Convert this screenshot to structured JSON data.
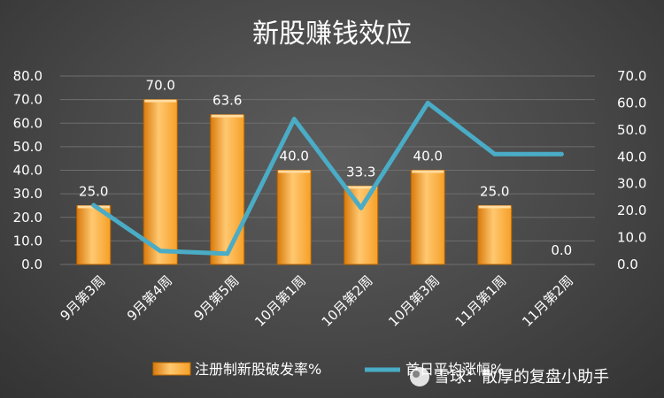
{
  "chart_data": {
    "type": "bar+line",
    "title": "新股赚钱效应",
    "categories": [
      "9月第3周",
      "9月第4周",
      "9月第5周",
      "10月第1周",
      "10月第2周",
      "10月第3周",
      "11月第1周",
      "11月第2周"
    ],
    "series": [
      {
        "name": "注册制新股破发率%",
        "type": "bar",
        "axis": "left",
        "values": [
          25.0,
          70.0,
          63.6,
          40.0,
          33.3,
          40.0,
          25.0,
          0.0
        ],
        "data_labels": [
          "25.0",
          "70.0",
          "63.6",
          "40.0",
          "33.3",
          "40.0",
          "25.0",
          "0.0"
        ]
      },
      {
        "name": "首日平均涨幅%",
        "type": "line",
        "axis": "right",
        "values": [
          22.0,
          5.0,
          4.0,
          54.0,
          21.0,
          60.0,
          41.0,
          41.0
        ]
      }
    ],
    "y_left": {
      "min": 0,
      "max": 80,
      "ticks": [
        "0.0",
        "10.0",
        "20.0",
        "30.0",
        "40.0",
        "50.0",
        "60.0",
        "70.0",
        "80.0"
      ]
    },
    "y_right": {
      "min": 0,
      "max": 70,
      "ticks": [
        "0.0",
        "10.0",
        "20.0",
        "30.0",
        "40.0",
        "50.0",
        "60.0",
        "70.0"
      ]
    },
    "grid": true,
    "legend": "bottom"
  },
  "colors": {
    "bar_light": "#ffc870",
    "bar_mid": "#f6a028",
    "bar_dark": "#d97a0c",
    "line": "#4aacc6",
    "grid": "#6e6e6e"
  },
  "watermark": {
    "icon": "snowball-logo-icon",
    "text": "雪球：散厚的复盘小助手"
  }
}
